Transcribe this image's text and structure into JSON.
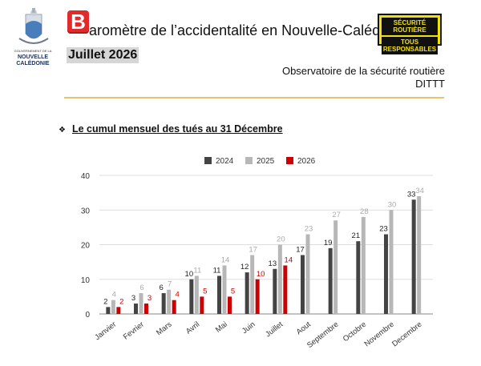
{
  "header": {
    "logo_line1": "GOUVERNEMENT DE LA",
    "logo_line2": "NOUVELLE",
    "logo_line3": "CALÉDONIE",
    "brand_letter": "B",
    "title": "aromètre de l’accidentalité en Nouvelle-Calédonie",
    "month": "Juillet 2026",
    "badge_line1": "SÉCURITÉ ROUTIÈRE",
    "badge_line2": "TOUS RESPONSABLES",
    "observatory_line1": "Observatoire de la sécurité routière",
    "observatory_line2": "DITTT"
  },
  "section": {
    "bullet": "❖",
    "title": "Le cumul mensuel des tués au 31 Décembre"
  },
  "colors": {
    "s2024": "#444444",
    "s2025": "#b7b7b7",
    "s2026": "#cc0000",
    "brand_red": "#e32a2a",
    "badge_yellow": "#f2e20c",
    "rule": "#e8c46a"
  },
  "chart_data": {
    "type": "bar",
    "categories": [
      "Janvier",
      "Fevrier",
      "Mars",
      "Avril",
      "Mai",
      "Juin",
      "Juillet",
      "Aout",
      "Septembre",
      "Octobre",
      "Novembre",
      "Decembre"
    ],
    "series": [
      {
        "name": "2024",
        "values": [
          2,
          3,
          6,
          10,
          11,
          12,
          13,
          17,
          19,
          21,
          23,
          33
        ]
      },
      {
        "name": "2025",
        "values": [
          4,
          6,
          7,
          11,
          14,
          17,
          20,
          23,
          27,
          28,
          30,
          34
        ]
      },
      {
        "name": "2026",
        "values": [
          2,
          3,
          4,
          5,
          5,
          10,
          14,
          null,
          null,
          null,
          null,
          null
        ]
      }
    ],
    "yticks": [
      0,
      10,
      20,
      30,
      40
    ],
    "ylim": [
      0,
      40
    ],
    "grid": true,
    "legend": "top-center"
  }
}
